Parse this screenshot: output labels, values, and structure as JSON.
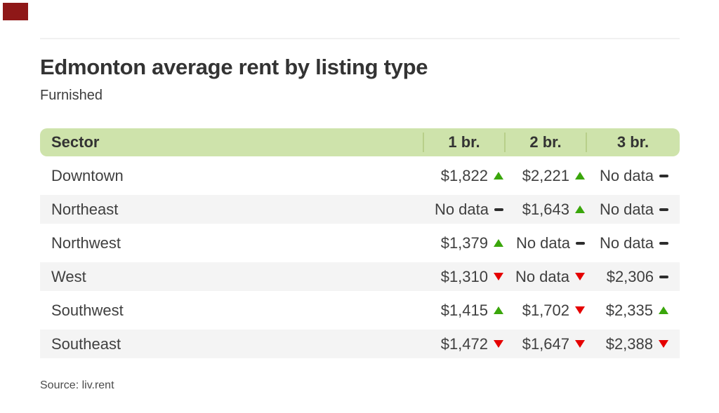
{
  "header": {
    "title": "Edmonton average rent by listing type",
    "subtitle": "Furnished"
  },
  "chart_data": {
    "type": "table",
    "title": "Edmonton average rent by listing type",
    "subtitle": "Furnished",
    "columns": [
      "Sector",
      "1 br.",
      "2 br.",
      "3 br."
    ],
    "rows": [
      {
        "sector": "Downtown",
        "cells": [
          {
            "display": "$1,822",
            "value": 1822,
            "trend": "up"
          },
          {
            "display": "$2,221",
            "value": 2221,
            "trend": "up"
          },
          {
            "display": "No data",
            "value": null,
            "trend": "flat"
          }
        ]
      },
      {
        "sector": "Northeast",
        "cells": [
          {
            "display": "No data",
            "value": null,
            "trend": "flat"
          },
          {
            "display": "$1,643",
            "value": 1643,
            "trend": "up"
          },
          {
            "display": "No data",
            "value": null,
            "trend": "flat"
          }
        ]
      },
      {
        "sector": "Northwest",
        "cells": [
          {
            "display": "$1,379",
            "value": 1379,
            "trend": "up"
          },
          {
            "display": "No data",
            "value": null,
            "trend": "flat"
          },
          {
            "display": "No data",
            "value": null,
            "trend": "flat"
          }
        ]
      },
      {
        "sector": "West",
        "cells": [
          {
            "display": "$1,310",
            "value": 1310,
            "trend": "down"
          },
          {
            "display": "No data",
            "value": null,
            "trend": "down"
          },
          {
            "display": "$2,306",
            "value": 2306,
            "trend": "flat"
          }
        ]
      },
      {
        "sector": "Southwest",
        "cells": [
          {
            "display": "$1,415",
            "value": 1415,
            "trend": "up"
          },
          {
            "display": "$1,702",
            "value": 1702,
            "trend": "down"
          },
          {
            "display": "$2,335",
            "value": 2335,
            "trend": "up"
          }
        ]
      },
      {
        "sector": "Southeast",
        "cells": [
          {
            "display": "$1,472",
            "value": 1472,
            "trend": "down"
          },
          {
            "display": "$1,647",
            "value": 1647,
            "trend": "down"
          },
          {
            "display": "$2,388",
            "value": 2388,
            "trend": "down"
          }
        ]
      }
    ],
    "source": "Source: liv.rent",
    "legend": {
      "up": "rent increased",
      "down": "rent decreased",
      "flat": "no change / no data"
    }
  },
  "footer": {
    "source": "Source: liv.rent"
  },
  "colors": {
    "header-green": "#cee3ab",
    "divider-green": "#b8cf8a",
    "row-gray": "#f4f4f4",
    "trend-up": "#3aa60b",
    "trend-down": "#e50000",
    "trend-flat": "#2d2d2d",
    "marker-red": "#8f1818"
  }
}
